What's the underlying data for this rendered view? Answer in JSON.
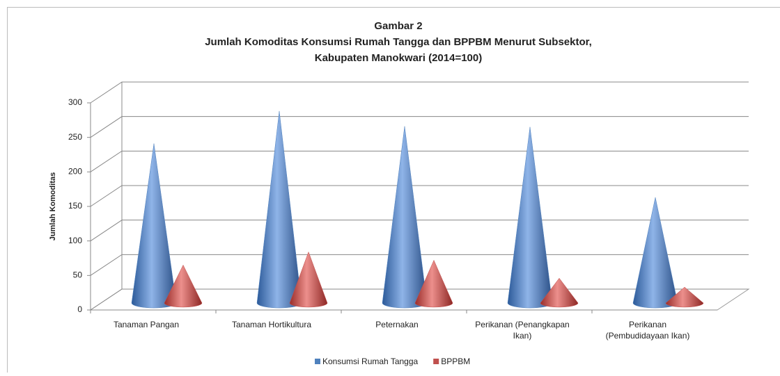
{
  "chart_data": {
    "type": "cone",
    "title": [
      "Gambar 2",
      "Jumlah Komoditas Konsumsi Rumah Tangga dan BPPBM Menurut Subsektor,",
      "Kabupaten Manokwari (2014=100)"
    ],
    "y_label": "Jumlah Komoditas",
    "categories": [
      [
        "Tanaman Pangan"
      ],
      [
        "Tanaman Hortikultura"
      ],
      [
        "Peternakan"
      ],
      [
        "Perikanan (Penangkapan",
        "Ikan)"
      ],
      [
        "Perikanan",
        "(Pembudidayaan Ikan)"
      ]
    ],
    "series": [
      {
        "name": "Konsumsi Rumah Tangga",
        "color": "#4f81bd",
        "values": [
          231,
          278,
          256,
          255,
          153
        ]
      },
      {
        "name": "BPPBM",
        "color": "#c0504d",
        "values": [
          55,
          74,
          62,
          36,
          23
        ]
      }
    ],
    "ylim": [
      0,
      300
    ],
    "yticks": [
      0,
      50,
      100,
      150,
      200,
      250,
      300
    ],
    "grid": true,
    "legend": "bottom"
  }
}
